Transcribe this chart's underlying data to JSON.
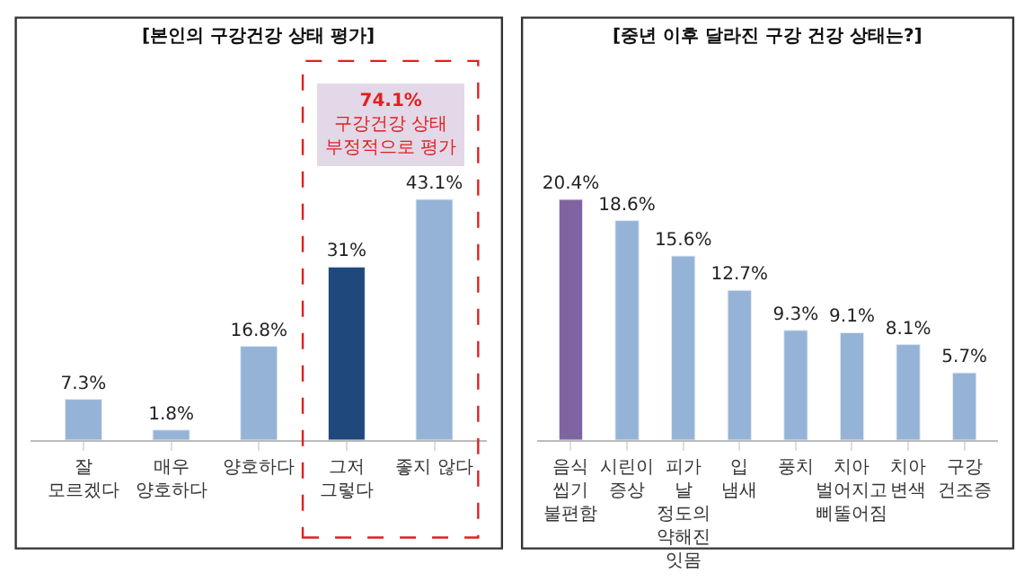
{
  "chart_data": [
    {
      "type": "bar",
      "title": "[본인의 구강건강 상태 평가]",
      "categories": [
        "잘 모르겠다",
        "매우 양호하다",
        "양호하다",
        "그저 그렇다",
        "좋지 않다"
      ],
      "values": [
        7.3,
        1.8,
        16.8,
        31,
        43.1
      ],
      "value_labels": [
        "7.3%",
        "1.8%",
        "16.8%",
        "31%",
        "43.1%"
      ],
      "colors": [
        "#95b3d7",
        "#95b3d7",
        "#95b3d7",
        "#1f497d",
        "#95b3d7"
      ],
      "annotations": [
        "74.1%",
        "구강건강 상태 부정적으로 평가"
      ]
    },
    {
      "type": "bar",
      "title": "[중년 이후 달라진 구강 건강 상태는?]",
      "categories": [
        "음식 씹기 불편함",
        "시린이 증상",
        "피가 날 정도의 약해진 잇몸",
        "입 냄새",
        "풍치",
        "치아 벌어지고 삐뚤어짐",
        "치아 변색",
        "구강 건조증"
      ],
      "values": [
        20.4,
        18.6,
        15.6,
        12.7,
        9.3,
        9.1,
        8.1,
        5.7
      ],
      "value_labels": [
        "20.4%",
        "18.6%",
        "15.6%",
        "12.7%",
        "9.3%",
        "9.1%",
        "8.1%",
        "5.7%"
      ],
      "colors": [
        "#8064a2",
        "#95b3d7",
        "#95b3d7",
        "#95b3d7",
        "#95b3d7",
        "#95b3d7",
        "#95b3d7",
        "#95b3d7"
      ]
    }
  ]
}
